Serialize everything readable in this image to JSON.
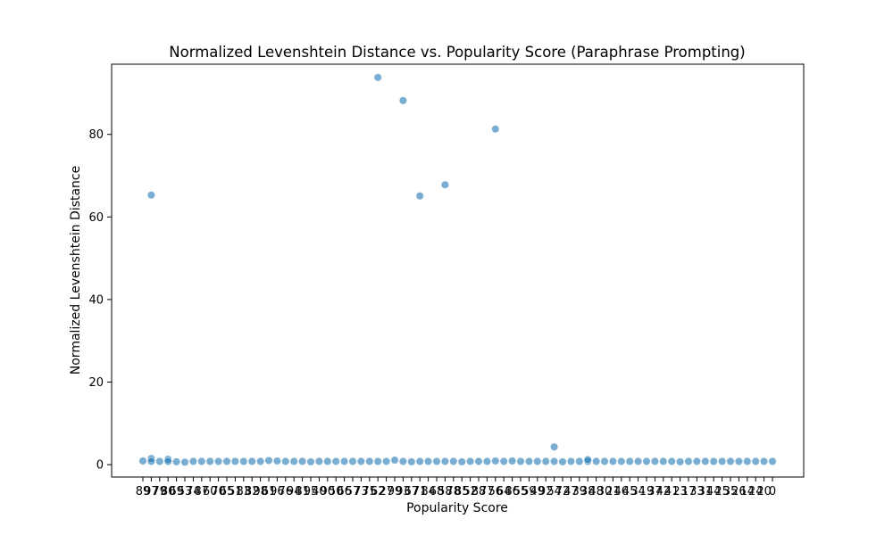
{
  "chart_data": {
    "type": "scatter",
    "title": "Normalized Levenshtein Distance vs. Popularity Score (Paraphrase Prompting)",
    "xlabel": "Popularity Score",
    "ylabel": "Normalized Levenshtein Distance",
    "ylim": [
      -3,
      97
    ],
    "yticks": [
      0,
      20,
      40,
      60,
      80
    ],
    "xtick_labels": [
      "89",
      "97",
      "79",
      "80",
      "69",
      "53",
      "74",
      "87",
      "60",
      "70",
      "65",
      "51",
      "83",
      "82",
      "98",
      "61",
      "96",
      "76",
      "94",
      "81",
      "95",
      "40",
      "90",
      "50",
      "66",
      "57",
      "73",
      "75",
      "62",
      "27",
      "99",
      "93",
      "67",
      "71",
      "84",
      "68",
      "58",
      "78",
      "85",
      "52",
      "88",
      "77",
      "56",
      "64",
      "86",
      "55",
      "59",
      "49",
      "92",
      "54",
      "72",
      "47",
      "39",
      "38",
      "48",
      "30",
      "21",
      "46",
      "45",
      "34",
      "19",
      "37",
      "42",
      "41",
      "23",
      "17",
      "33",
      "31",
      "44",
      "25",
      "35",
      "26",
      "14",
      "24",
      "20",
      "0"
    ],
    "grid": false,
    "legend": "none",
    "point_color": "#1f77b4",
    "point_opacity": 0.6,
    "series": [
      {
        "x": [
          "89",
          "97",
          "97",
          "97",
          "79",
          "80",
          "80",
          "69",
          "53",
          "74",
          "87",
          "60",
          "70",
          "65",
          "51",
          "83",
          "82",
          "98",
          "61",
          "96",
          "76",
          "94",
          "81",
          "95",
          "40",
          "90",
          "50",
          "66",
          "57",
          "73",
          "75",
          "62",
          "27",
          "99",
          "93",
          "67",
          "71",
          "84",
          "68",
          "58",
          "78",
          "85",
          "52",
          "88",
          "77",
          "56",
          "64",
          "86",
          "55",
          "59",
          "49",
          "92",
          "54",
          "72",
          "47",
          "39",
          "38",
          "48",
          "30",
          "21",
          "46",
          "45",
          "34",
          "19",
          "37",
          "42",
          "41",
          "23",
          "17",
          "33",
          "31",
          "44",
          "25",
          "35",
          "26",
          "14",
          "24",
          "20",
          "0",
          "62",
          "93",
          "71",
          "58",
          "56",
          "54",
          "38"
        ],
        "y": [
          0.9,
          65.3,
          1.5,
          0.8,
          0.8,
          1.3,
          0.8,
          0.7,
          0.6,
          0.8,
          0.8,
          0.8,
          0.8,
          0.8,
          0.8,
          0.8,
          0.8,
          0.8,
          1.0,
          0.9,
          0.8,
          0.8,
          0.8,
          0.7,
          0.8,
          0.8,
          0.8,
          0.8,
          0.8,
          0.8,
          0.8,
          0.8,
          0.8,
          1.1,
          0.8,
          0.7,
          0.8,
          0.8,
          0.8,
          0.8,
          0.8,
          0.7,
          0.8,
          0.8,
          0.8,
          0.9,
          0.8,
          0.9,
          0.8,
          0.8,
          0.8,
          0.8,
          0.8,
          0.7,
          0.8,
          0.8,
          0.8,
          0.8,
          0.8,
          0.8,
          0.8,
          0.8,
          0.8,
          0.8,
          0.8,
          0.8,
          0.8,
          0.7,
          0.8,
          0.8,
          0.8,
          0.8,
          0.8,
          0.8,
          0.8,
          0.8,
          0.8,
          0.8,
          0.8,
          93.8,
          88.2,
          65.1,
          67.8,
          81.3,
          4.3,
          1.2
        ]
      }
    ]
  }
}
